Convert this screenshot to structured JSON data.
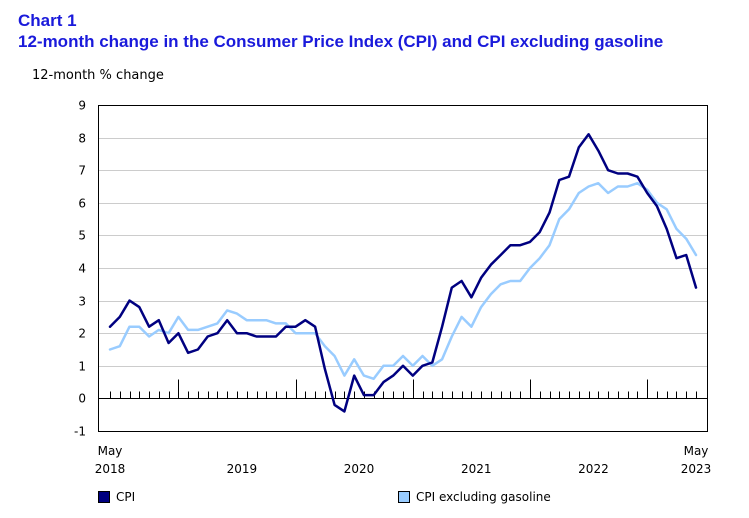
{
  "heading": {
    "chart_number": "Chart 1",
    "title": "12-month change in the Consumer Price Index (CPI) and CPI excluding gasoline"
  },
  "colors": {
    "heading": "#1a1adb",
    "cpi": "#000080",
    "cpi_ex_gasoline": "#99ccff",
    "axis": "#000000"
  },
  "chart_data": {
    "type": "line",
    "title": "12-month change in the Consumer Price Index (CPI) and CPI excluding gasoline",
    "ylabel": "12-month % change",
    "xlabel": "",
    "ylim": [
      -1,
      9
    ],
    "yticks": [
      "-1",
      "0",
      "1",
      "2",
      "3",
      "4",
      "5",
      "6",
      "7",
      "8",
      "9"
    ],
    "x_start": "May 2018",
    "x_end": "May 2023",
    "x_major_labels": [
      {
        "label": "May",
        "year": "2018"
      },
      {
        "label": "",
        "year": "2019"
      },
      {
        "label": "",
        "year": "2020"
      },
      {
        "label": "",
        "year": "2021"
      },
      {
        "label": "",
        "year": "2022"
      },
      {
        "label": "May",
        "year": "2023"
      }
    ],
    "x": [
      "2018-05",
      "2018-06",
      "2018-07",
      "2018-08",
      "2018-09",
      "2018-10",
      "2018-11",
      "2018-12",
      "2019-01",
      "2019-02",
      "2019-03",
      "2019-04",
      "2019-05",
      "2019-06",
      "2019-07",
      "2019-08",
      "2019-09",
      "2019-10",
      "2019-11",
      "2019-12",
      "2020-01",
      "2020-02",
      "2020-03",
      "2020-04",
      "2020-05",
      "2020-06",
      "2020-07",
      "2020-08",
      "2020-09",
      "2020-10",
      "2020-11",
      "2020-12",
      "2021-01",
      "2021-02",
      "2021-03",
      "2021-04",
      "2021-05",
      "2021-06",
      "2021-07",
      "2021-08",
      "2021-09",
      "2021-10",
      "2021-11",
      "2021-12",
      "2022-01",
      "2022-02",
      "2022-03",
      "2022-04",
      "2022-05",
      "2022-06",
      "2022-07",
      "2022-08",
      "2022-09",
      "2022-10",
      "2022-11",
      "2022-12",
      "2023-01",
      "2023-02",
      "2023-03",
      "2023-04",
      "2023-05"
    ],
    "series": [
      {
        "name": "CPI",
        "values": [
          2.2,
          2.5,
          3.0,
          2.8,
          2.2,
          2.4,
          1.7,
          2.0,
          1.4,
          1.5,
          1.9,
          2.0,
          2.4,
          2.0,
          2.0,
          1.9,
          1.9,
          1.9,
          2.2,
          2.2,
          2.4,
          2.2,
          0.9,
          -0.2,
          -0.4,
          0.7,
          0.1,
          0.1,
          0.5,
          0.7,
          1.0,
          0.7,
          1.0,
          1.1,
          2.2,
          3.4,
          3.6,
          3.1,
          3.7,
          4.1,
          4.4,
          4.7,
          4.7,
          4.8,
          5.1,
          5.7,
          6.7,
          6.8,
          7.7,
          8.1,
          7.6,
          7.0,
          6.9,
          6.9,
          6.8,
          6.3,
          5.9,
          5.2,
          4.3,
          4.4,
          3.4
        ]
      },
      {
        "name": "CPI excluding gasoline",
        "values": [
          1.5,
          1.6,
          2.2,
          2.2,
          1.9,
          2.1,
          2.0,
          2.5,
          2.1,
          2.1,
          2.2,
          2.3,
          2.7,
          2.6,
          2.4,
          2.4,
          2.4,
          2.3,
          2.3,
          2.0,
          2.0,
          2.0,
          1.6,
          1.3,
          0.7,
          1.2,
          0.7,
          0.6,
          1.0,
          1.0,
          1.3,
          1.0,
          1.3,
          1.0,
          1.2,
          1.9,
          2.5,
          2.2,
          2.8,
          3.2,
          3.5,
          3.6,
          3.6,
          4.0,
          4.3,
          4.7,
          5.5,
          5.8,
          6.3,
          6.5,
          6.6,
          6.3,
          6.5,
          6.5,
          6.6,
          6.4,
          6.0,
          5.8,
          5.2,
          4.9,
          4.4
        ]
      }
    ],
    "grid": "horizontal",
    "legend_position": "bottom"
  }
}
